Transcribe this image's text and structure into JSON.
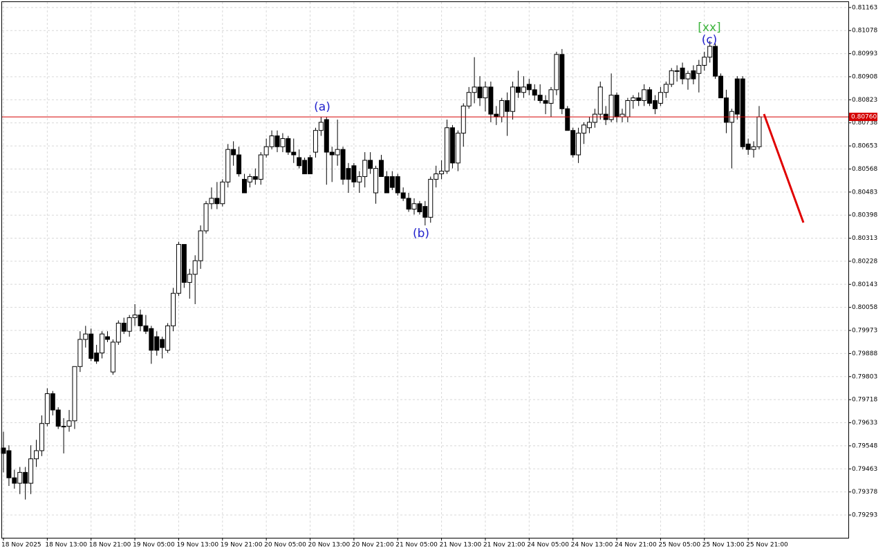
{
  "chart_data": {
    "type": "candlestick",
    "categories": [
      "18 Nov 2025",
      null,
      null,
      null,
      null,
      null,
      null,
      null,
      "18 Nov 13:00",
      null,
      null,
      null,
      null,
      null,
      null,
      null,
      "18 Nov 21:00",
      null,
      null,
      null,
      null,
      null,
      null,
      null,
      "19 Nov 05:00",
      null,
      null,
      null,
      null,
      null,
      null,
      null,
      "19 Nov 13:00",
      null,
      null,
      null,
      null,
      null,
      null,
      null,
      "19 Nov 21:00",
      null,
      null,
      null,
      null,
      null,
      null,
      null,
      "20 Nov 05:00",
      null,
      null,
      null,
      null,
      null,
      null,
      null,
      "20 Nov 13:00",
      null,
      null,
      null,
      null,
      null,
      null,
      null,
      "20 Nov 21:00",
      null,
      null,
      null,
      null,
      null,
      null,
      null,
      "21 Nov 05:00",
      null,
      null,
      null,
      null,
      null,
      null,
      null,
      "21 Nov 13:00",
      null,
      null,
      null,
      null,
      null,
      null,
      null,
      "21 Nov 21:00",
      null,
      null,
      null,
      null,
      null,
      null,
      null,
      "24 Nov 05:00",
      null,
      null,
      null,
      null,
      null,
      null,
      null,
      "24 Nov 13:00",
      null,
      null,
      null,
      null,
      null,
      null,
      null,
      "24 Nov 21:00",
      null,
      null,
      null,
      null,
      null,
      null,
      null,
      "25 Nov 05:00",
      null,
      null,
      null,
      null,
      null,
      null,
      null,
      "25 Nov 13:00",
      null,
      null,
      null,
      null,
      null,
      null,
      null,
      "25 Nov 21:00",
      null,
      null
    ],
    "open": [
      0.7954,
      0.7953,
      0.7943,
      0.7941,
      0.7945,
      0.7941,
      0.795,
      0.7953,
      0.7963,
      0.7974,
      0.7968,
      0.7962,
      0.7962,
      0.7964,
      0.7984,
      0.7994,
      0.7996,
      0.7989,
      0.7989,
      0.7995,
      0.7982,
      0.7993,
      0.8,
      0.7997,
      0.8002,
      0.8003,
      0.7999,
      0.7998,
      0.7995,
      0.7994,
      0.799,
      0.7999,
      0.8011,
      0.8029,
      0.8015,
      0.8018,
      0.8023,
      0.8034,
      0.8044,
      0.8046,
      0.8044,
      0.8052,
      0.8064,
      0.8062,
      0.8053,
      0.8052,
      0.8054,
      0.8053,
      0.8062,
      0.8065,
      0.8069,
      0.8065,
      0.8068,
      0.8063,
      0.8061,
      0.806,
      0.8061,
      0.8063,
      0.8071,
      0.8075,
      0.8063,
      0.8062,
      0.8064,
      0.8057,
      0.8058,
      0.8052,
      0.8054,
      0.806,
      0.8048,
      0.806,
      0.8054,
      0.8054,
      0.8054,
      0.8048,
      0.8046,
      0.8042,
      0.8044,
      0.8043,
      0.8039,
      0.8053,
      0.8055,
      0.8056,
      0.8072,
      0.8059,
      0.807,
      0.808,
      0.8085,
      0.8087,
      0.8083,
      0.8087,
      0.8077,
      0.8076,
      0.8082,
      0.8078,
      0.8087,
      0.8085,
      0.8088,
      0.8086,
      0.8084,
      0.8082,
      0.8081,
      0.8086,
      0.8099,
      0.8079,
      0.8071,
      0.8062,
      0.807,
      0.8072,
      0.8074,
      0.8077,
      0.8077,
      0.8075,
      0.8084,
      0.8076,
      0.8076,
      0.8082,
      0.8083,
      0.8082,
      0.8086,
      0.8082,
      0.8081,
      0.8085,
      0.8088,
      0.8093,
      0.8094,
      0.809,
      0.8093,
      0.8092,
      0.8095,
      0.8098,
      0.8102,
      0.8091,
      0.8083,
      0.8074,
      0.809,
      0.809,
      0.8066,
      0.8064,
      0.8065
    ],
    "high": [
      0.796,
      0.7955,
      0.7946,
      0.7947,
      0.7947,
      0.7955,
      0.7957,
      0.7966,
      0.7976,
      0.7975,
      0.7969,
      0.7965,
      0.7968,
      0.7984,
      0.7997,
      0.7999,
      0.7998,
      0.7992,
      0.7997,
      0.7997,
      0.7994,
      0.8001,
      0.8002,
      0.8003,
      0.8007,
      0.8005,
      0.8003,
      0.7999,
      0.7997,
      0.7995,
      0.8,
      0.8013,
      0.803,
      0.8029,
      0.802,
      0.8025,
      0.8036,
      0.8045,
      0.805,
      0.8052,
      0.8053,
      0.8066,
      0.8067,
      0.8065,
      0.8055,
      0.8055,
      0.8057,
      0.8063,
      0.8068,
      0.8071,
      0.8071,
      0.807,
      0.8069,
      0.8068,
      0.8064,
      0.8061,
      0.8062,
      0.8072,
      0.8076,
      0.8076,
      0.8065,
      0.8075,
      0.8065,
      0.8059,
      0.8059,
      0.8056,
      0.8063,
      0.8063,
      0.8058,
      0.8062,
      0.8056,
      0.8056,
      0.8055,
      0.805,
      0.8048,
      0.8046,
      0.8045,
      0.8045,
      0.8054,
      0.8058,
      0.806,
      0.8075,
      0.8073,
      0.8071,
      0.8081,
      0.8087,
      0.8098,
      0.8091,
      0.8089,
      0.8089,
      0.808,
      0.8083,
      0.8085,
      0.8089,
      0.8093,
      0.8091,
      0.809,
      0.8088,
      0.8088,
      0.8084,
      0.8087,
      0.81,
      0.8101,
      0.808,
      0.8072,
      0.8072,
      0.8074,
      0.8076,
      0.8079,
      0.8089,
      0.808,
      0.8092,
      0.8085,
      0.8079,
      0.8083,
      0.8084,
      0.8085,
      0.8088,
      0.8087,
      0.8084,
      0.8087,
      0.8089,
      0.8094,
      0.8095,
      0.8096,
      0.8093,
      0.8095,
      0.8097,
      0.81,
      0.8104,
      0.8103,
      0.8092,
      0.8086,
      0.8079,
      0.8091,
      0.8091,
      0.8068,
      0.8067,
      0.808
    ],
    "low": [
      0.7945,
      0.794,
      0.7939,
      0.7937,
      0.7935,
      0.7937,
      0.7947,
      0.7951,
      0.7962,
      0.7966,
      0.7961,
      0.7952,
      0.796,
      0.7961,
      0.7982,
      0.7991,
      0.7986,
      0.7985,
      0.7987,
      0.7993,
      0.7981,
      0.7992,
      0.7996,
      0.7995,
      0.7999,
      0.7997,
      0.7996,
      0.7985,
      0.7988,
      0.7987,
      0.7989,
      0.7997,
      0.801,
      0.8013,
      0.8009,
      0.8007,
      0.802,
      0.8033,
      0.8042,
      0.8042,
      0.8043,
      0.805,
      0.8058,
      0.8054,
      0.8048,
      0.805,
      0.8051,
      0.8051,
      0.8061,
      0.8064,
      0.8063,
      0.8063,
      0.8062,
      0.8059,
      0.8057,
      0.8055,
      0.8055,
      0.8061,
      0.8069,
      0.8051,
      0.8052,
      0.8058,
      0.8051,
      0.8048,
      0.805,
      0.8048,
      0.805,
      0.8055,
      0.8044,
      0.8054,
      0.8048,
      0.8049,
      0.8047,
      0.8045,
      0.8041,
      0.804,
      0.804,
      0.8036,
      0.8037,
      0.805,
      0.8053,
      0.8055,
      0.8057,
      0.8056,
      0.8065,
      0.8079,
      0.8081,
      0.808,
      0.8078,
      0.8074,
      0.8073,
      0.8074,
      0.8069,
      0.8075,
      0.8083,
      0.8083,
      0.8084,
      0.8082,
      0.8081,
      0.8077,
      0.8076,
      0.8084,
      0.8077,
      0.8071,
      0.8061,
      0.8059,
      0.8066,
      0.807,
      0.8072,
      0.8075,
      0.8073,
      0.8074,
      0.8074,
      0.8074,
      0.8074,
      0.8079,
      0.808,
      0.808,
      0.808,
      0.8077,
      0.808,
      0.8083,
      0.8087,
      0.8089,
      0.8088,
      0.8086,
      0.8088,
      0.8085,
      0.8093,
      0.8096,
      0.809,
      0.8083,
      0.807,
      0.8057,
      0.8075,
      0.8064,
      0.8062,
      0.8061,
      0.8064
    ],
    "close": [
      0.7952,
      0.7943,
      0.7941,
      0.7945,
      0.7941,
      0.795,
      0.7953,
      0.7963,
      0.7974,
      0.7968,
      0.7962,
      0.7962,
      0.7964,
      0.7984,
      0.7994,
      0.7996,
      0.7987,
      0.7986,
      0.7996,
      0.7994,
      0.7993,
      0.8,
      0.7997,
      0.8002,
      0.8003,
      0.7999,
      0.7997,
      0.799,
      0.799,
      0.7991,
      0.7999,
      0.8011,
      0.8029,
      0.8015,
      0.8018,
      0.8023,
      0.8034,
      0.8044,
      0.8046,
      0.8044,
      0.8052,
      0.8064,
      0.8062,
      0.8055,
      0.8048,
      0.8054,
      0.8053,
      0.8062,
      0.8065,
      0.8069,
      0.8065,
      0.8068,
      0.8063,
      0.8062,
      0.8058,
      0.8055,
      0.8055,
      0.8071,
      0.8074,
      0.8063,
      0.8062,
      0.8064,
      0.8053,
      0.8053,
      0.8052,
      0.8054,
      0.806,
      0.8057,
      0.8057,
      0.8054,
      0.8048,
      0.805,
      0.8048,
      0.8046,
      0.8042,
      0.8044,
      0.8041,
      0.8039,
      0.8053,
      0.8055,
      0.8056,
      0.8072,
      0.8059,
      0.807,
      0.808,
      0.8085,
      0.8087,
      0.8083,
      0.8087,
      0.8077,
      0.8076,
      0.8082,
      0.8078,
      0.8087,
      0.8085,
      0.8087,
      0.8086,
      0.8084,
      0.8082,
      0.8081,
      0.8086,
      0.8099,
      0.8079,
      0.8071,
      0.8062,
      0.807,
      0.8073,
      0.8074,
      0.8077,
      0.8087,
      0.8075,
      0.8084,
      0.8076,
      0.8077,
      0.8082,
      0.8083,
      0.8082,
      0.8086,
      0.8081,
      0.8079,
      0.8085,
      0.8088,
      0.8093,
      0.8093,
      0.809,
      0.8092,
      0.809,
      0.8095,
      0.8098,
      0.8102,
      0.8091,
      0.8083,
      0.8074,
      0.8078,
      0.8077,
      0.8065,
      0.8064,
      0.8065,
      0.8076
    ],
    "up_color": "#ffffff",
    "down_color": "#000000",
    "ylim": [
      0.79209,
      0.81183
    ],
    "yticks": [
      0.79293,
      0.79378,
      0.79463,
      0.79548,
      0.79633,
      0.79718,
      0.79803,
      0.79888,
      0.79973,
      0.80058,
      0.80143,
      0.80228,
      0.80313,
      0.80398,
      0.80483,
      0.80568,
      0.80653,
      0.80738,
      0.80823,
      0.80908,
      0.80993,
      0.81078,
      0.81163
    ],
    "grid": true,
    "current_price": {
      "value": 0.8076,
      "label": "0.80760"
    },
    "current_price_color": "#d40000",
    "annotations": [
      "(a)",
      "(b)",
      "(c)",
      "[xx]"
    ]
  }
}
